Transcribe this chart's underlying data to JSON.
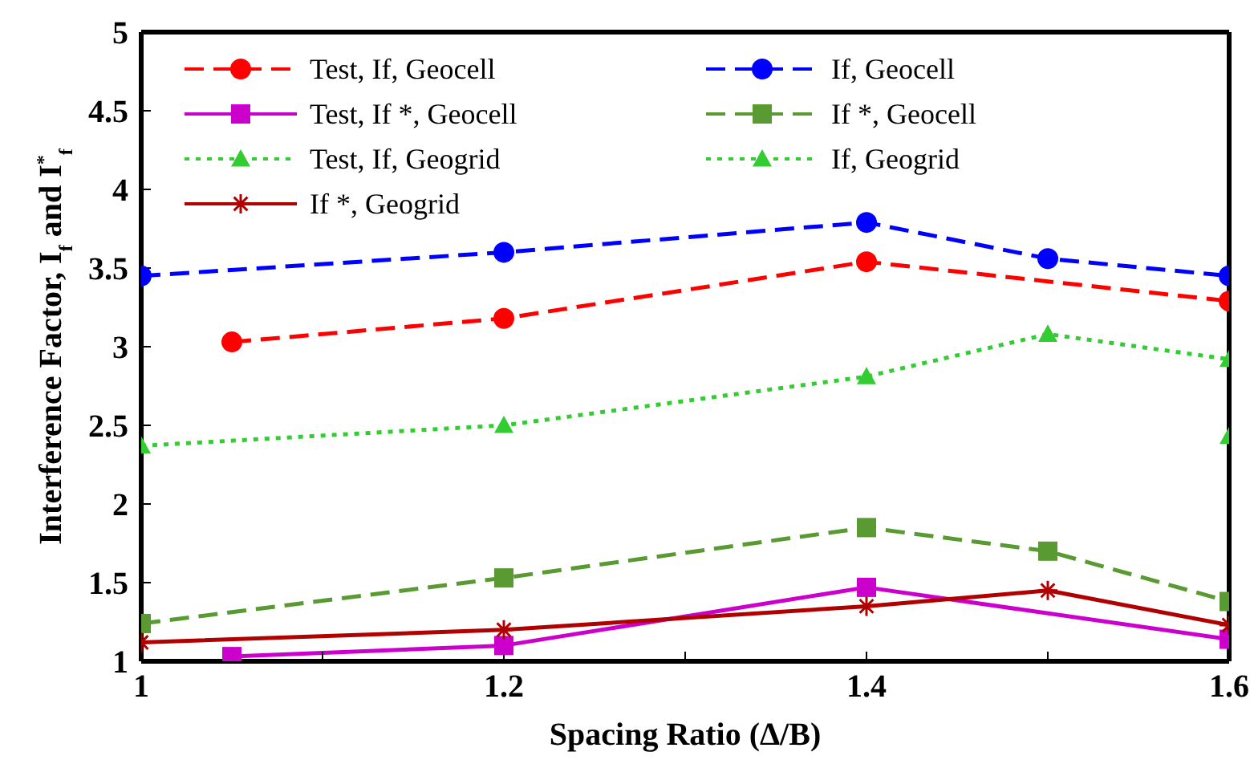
{
  "chart_data": {
    "type": "line",
    "xlabel": "Spacing Ratio (Δ/B)",
    "ylabel": "Interference Factor, I$_{f}$ and I$^{*}$$_{f}$",
    "xlim": [
      1,
      1.6
    ],
    "xticks": [
      1,
      {
        "value": 1.1,
        "label": null
      },
      1.2,
      {
        "value": 1.3,
        "label": null
      },
      1.4,
      {
        "value": 1.5,
        "label": null
      },
      1.6
    ],
    "ylim": [
      1,
      5
    ],
    "yticks": [
      1,
      1.5,
      2,
      2.5,
      3,
      3.5,
      4,
      4.5,
      5
    ],
    "grid": false,
    "legend": "top left",
    "series": [
      {
        "name": "Test, If, Geocell",
        "color": "#ff0000",
        "marker": "circle",
        "line_style": "dashed",
        "x": [
          1.05,
          1.2,
          1.4,
          1.6
        ],
        "values": [
          3.03,
          3.18,
          3.54,
          3.29
        ]
      },
      {
        "name": "If, Geocell",
        "color": "#0000ff",
        "marker": "circle",
        "line_style": "dashed",
        "x": [
          1,
          1.2,
          1.4,
          1.5,
          1.6
        ],
        "values": [
          3.45,
          3.6,
          3.79,
          3.56,
          3.45
        ]
      },
      {
        "name": "Test, If *, Geocell",
        "color": "#cc00cc",
        "marker": "square",
        "line_style": "solid",
        "x": [
          1.05,
          1.2,
          1.4,
          1.6
        ],
        "values": [
          1.03,
          1.1,
          1.47,
          1.14
        ]
      },
      {
        "name": "If *, Geocell",
        "color": "#5a9a32",
        "marker": "square",
        "line_style": "dashed",
        "x": [
          1,
          1.2,
          1.4,
          1.5,
          1.6
        ],
        "values": [
          1.24,
          1.53,
          1.85,
          1.7,
          1.38
        ]
      },
      {
        "name": "Test, If, Geogrid",
        "color": "#33cc33",
        "marker": "triangle",
        "line_style": "dotted",
        "x": [
          1.6
        ],
        "values": [
          2.43
        ]
      },
      {
        "name": "If, Geogrid",
        "color": "#33cc33",
        "marker": "triangle",
        "line_style": "dotted",
        "x": [
          1,
          1.2,
          1.4,
          1.5,
          1.6
        ],
        "values": [
          2.37,
          2.5,
          2.81,
          3.08,
          2.92
        ]
      },
      {
        "name": "If *, Geogrid",
        "color": "#b00000",
        "marker": "cross",
        "line_style": "solid",
        "x": [
          1,
          1.2,
          1.4,
          1.5,
          1.6
        ],
        "values": [
          1.12,
          1.2,
          1.35,
          1.45,
          1.23
        ]
      }
    ]
  }
}
